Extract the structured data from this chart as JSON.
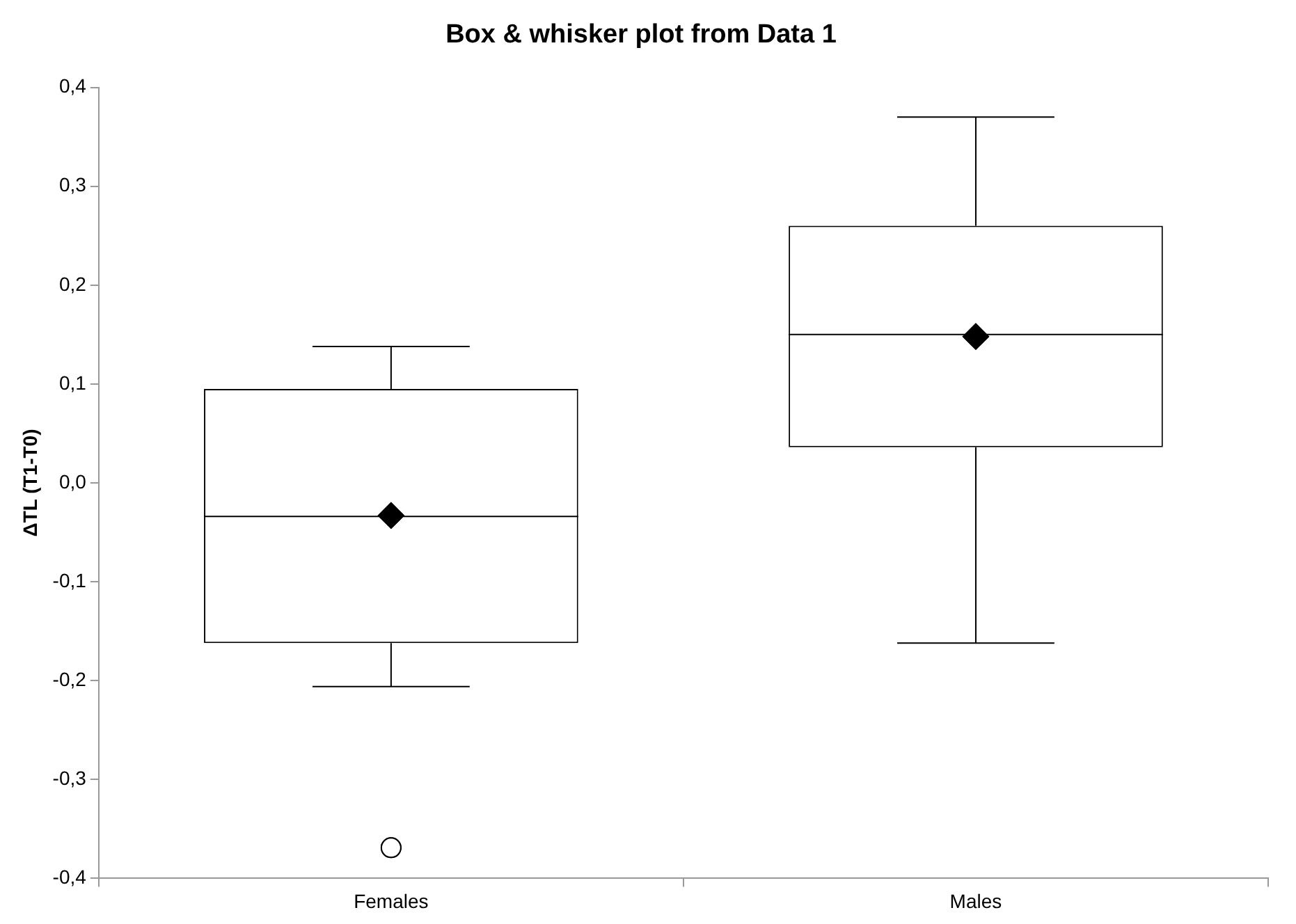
{
  "chart_data": {
    "type": "box",
    "title": "Box & whisker plot from Data 1",
    "ylabel": "ΔTL (T1-T0)",
    "categories": [
      "Females",
      "Males"
    ],
    "boxes": [
      {
        "low": -0.206,
        "q1": -0.162,
        "median": -0.034,
        "q3": 0.095,
        "high": 0.138,
        "mean": -0.033,
        "outliers": [
          -0.369
        ]
      },
      {
        "low": -0.162,
        "q1": 0.036,
        "median": 0.15,
        "q3": 0.26,
        "high": 0.37,
        "mean": 0.148
      }
    ],
    "color": "#000000",
    "ylim": [
      -0.4,
      0.4
    ],
    "yticks": [
      {
        "value": -0.4,
        "label": "-0,4"
      },
      {
        "value": -0.3,
        "label": "-0,3"
      },
      {
        "value": -0.2,
        "label": "-0,2"
      },
      {
        "value": -0.1,
        "label": "-0,1"
      },
      {
        "value": 0,
        "label": "0,0"
      },
      {
        "value": 0.1,
        "label": "0,1"
      },
      {
        "value": 0.2,
        "label": "0,2"
      },
      {
        "value": 0.3,
        "label": "0,3"
      },
      {
        "value": 0.4,
        "label": "0,4"
      }
    ],
    "grid": false,
    "legend": false
  }
}
